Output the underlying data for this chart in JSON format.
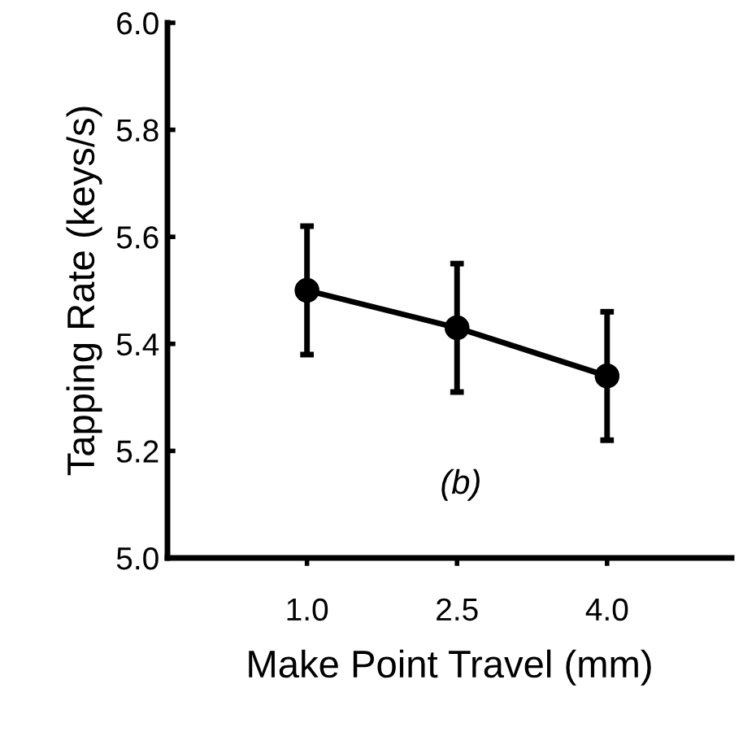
{
  "chart_data": {
    "type": "line",
    "xlabel": "Make Point Travel (mm)",
    "ylabel": "Tapping Rate (keys/s)",
    "categories": [
      "1.0",
      "2.5",
      "4.0"
    ],
    "series": [
      {
        "color": "#000000",
        "values": [
          5.5,
          5.43,
          5.34
        ],
        "errors": [
          0.12,
          0.12,
          0.12
        ]
      }
    ],
    "ylim": [
      5.0,
      6.0
    ],
    "yticks": [
      {
        "value": 5.0,
        "label": "5.0"
      },
      5.2,
      5.4,
      5.6,
      5.8,
      {
        "value": 6.0,
        "label": "6.0"
      }
    ],
    "marker": "circle",
    "line_style": "solid",
    "grid": false,
    "annotations": [
      "(b)"
    ]
  }
}
